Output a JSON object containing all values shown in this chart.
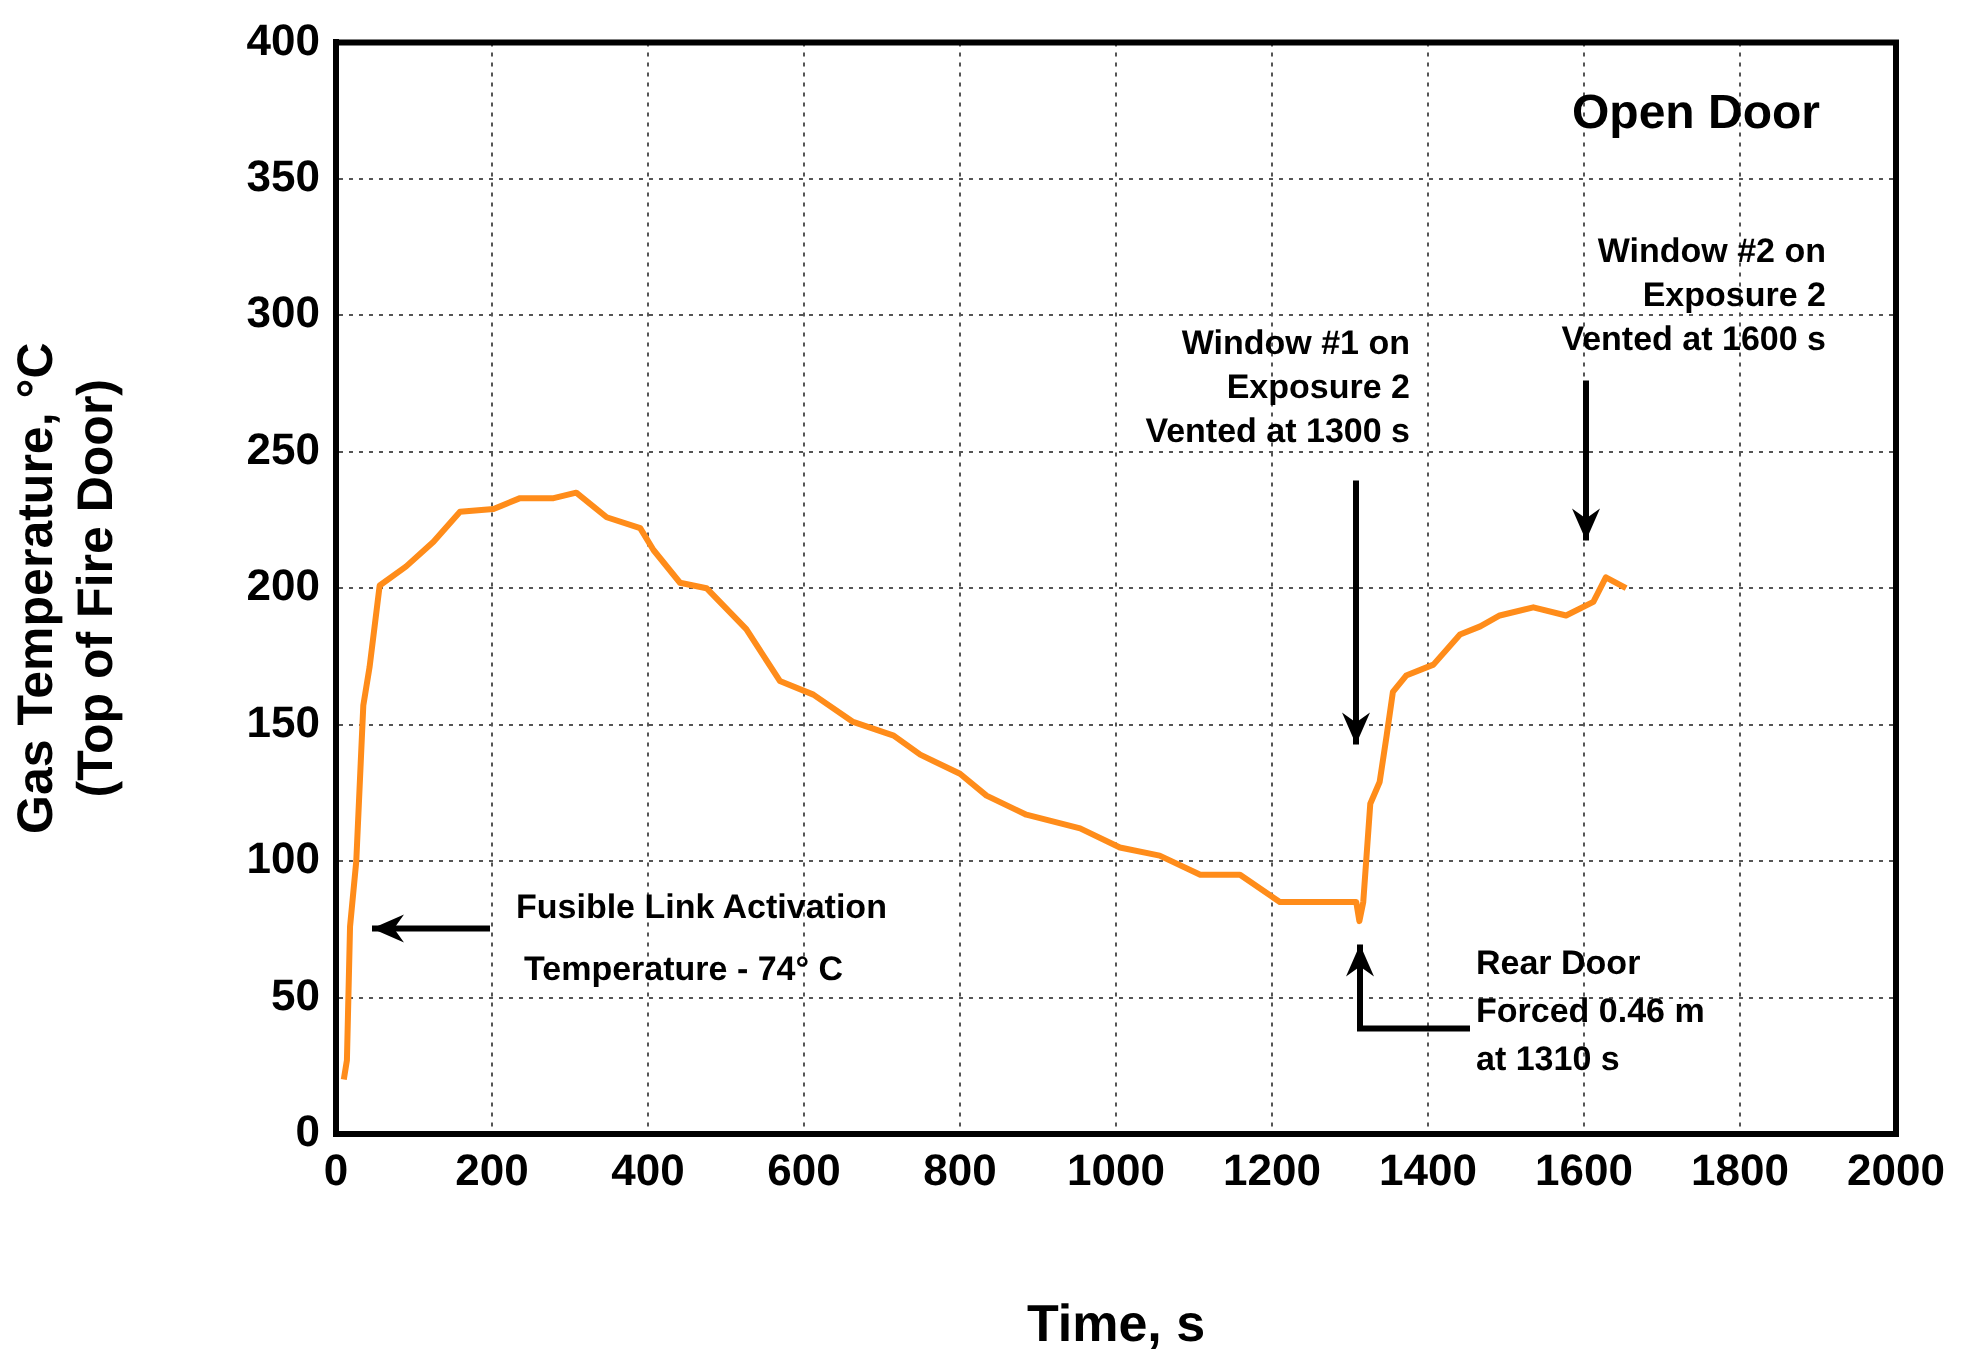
{
  "chart_data": {
    "type": "line",
    "xlabel": "Time, s",
    "ylabel": "Gas Temperature, °C\n(Top of Fire Door)",
    "annotations": [
      "Open Door",
      "Fusible Link Activation\nTemperature - 74° C",
      "Window #1 on\nExposure 2\nVented at 1300 s",
      "Window #2 on\nExposure 2\nVented at 1600 s",
      "Rear Door\nForced 0.46 m\nat 1310 s"
    ],
    "x": [
      10,
      14,
      18,
      26,
      35,
      43,
      56,
      90,
      125,
      159,
      202,
      236,
      279,
      308,
      347,
      390,
      407,
      441,
      475,
      526,
      569,
      612,
      663,
      715,
      749,
      800,
      834,
      885,
      954,
      1005,
      1056,
      1108,
      1159,
      1210,
      1262,
      1308,
      1312,
      1317,
      1326,
      1338,
      1347,
      1355,
      1372,
      1407,
      1441,
      1467,
      1492,
      1535,
      1577,
      1612,
      1628,
      1654
    ],
    "values": [
      20,
      27,
      76,
      100,
      157,
      171,
      201,
      208,
      217,
      228,
      229,
      233,
      233,
      235,
      226,
      222,
      214,
      202,
      200,
      185,
      166,
      161,
      151,
      146,
      139,
      132,
      124,
      117,
      112,
      105,
      102,
      95,
      95,
      85,
      85,
      85,
      78,
      85,
      121,
      129,
      146,
      162,
      168,
      172,
      183,
      186,
      190,
      193,
      190,
      195,
      204,
      200
    ],
    "color": "#ff8c1a",
    "marker": "none",
    "xlim": [
      0,
      2000
    ],
    "xticks": [
      0,
      200,
      400,
      600,
      800,
      1000,
      1200,
      1400,
      1600,
      1800,
      2000
    ],
    "ylim": [
      0,
      400
    ],
    "yticks": [
      0,
      50,
      100,
      150,
      200,
      250,
      300,
      350,
      400
    ],
    "grid": true
  }
}
